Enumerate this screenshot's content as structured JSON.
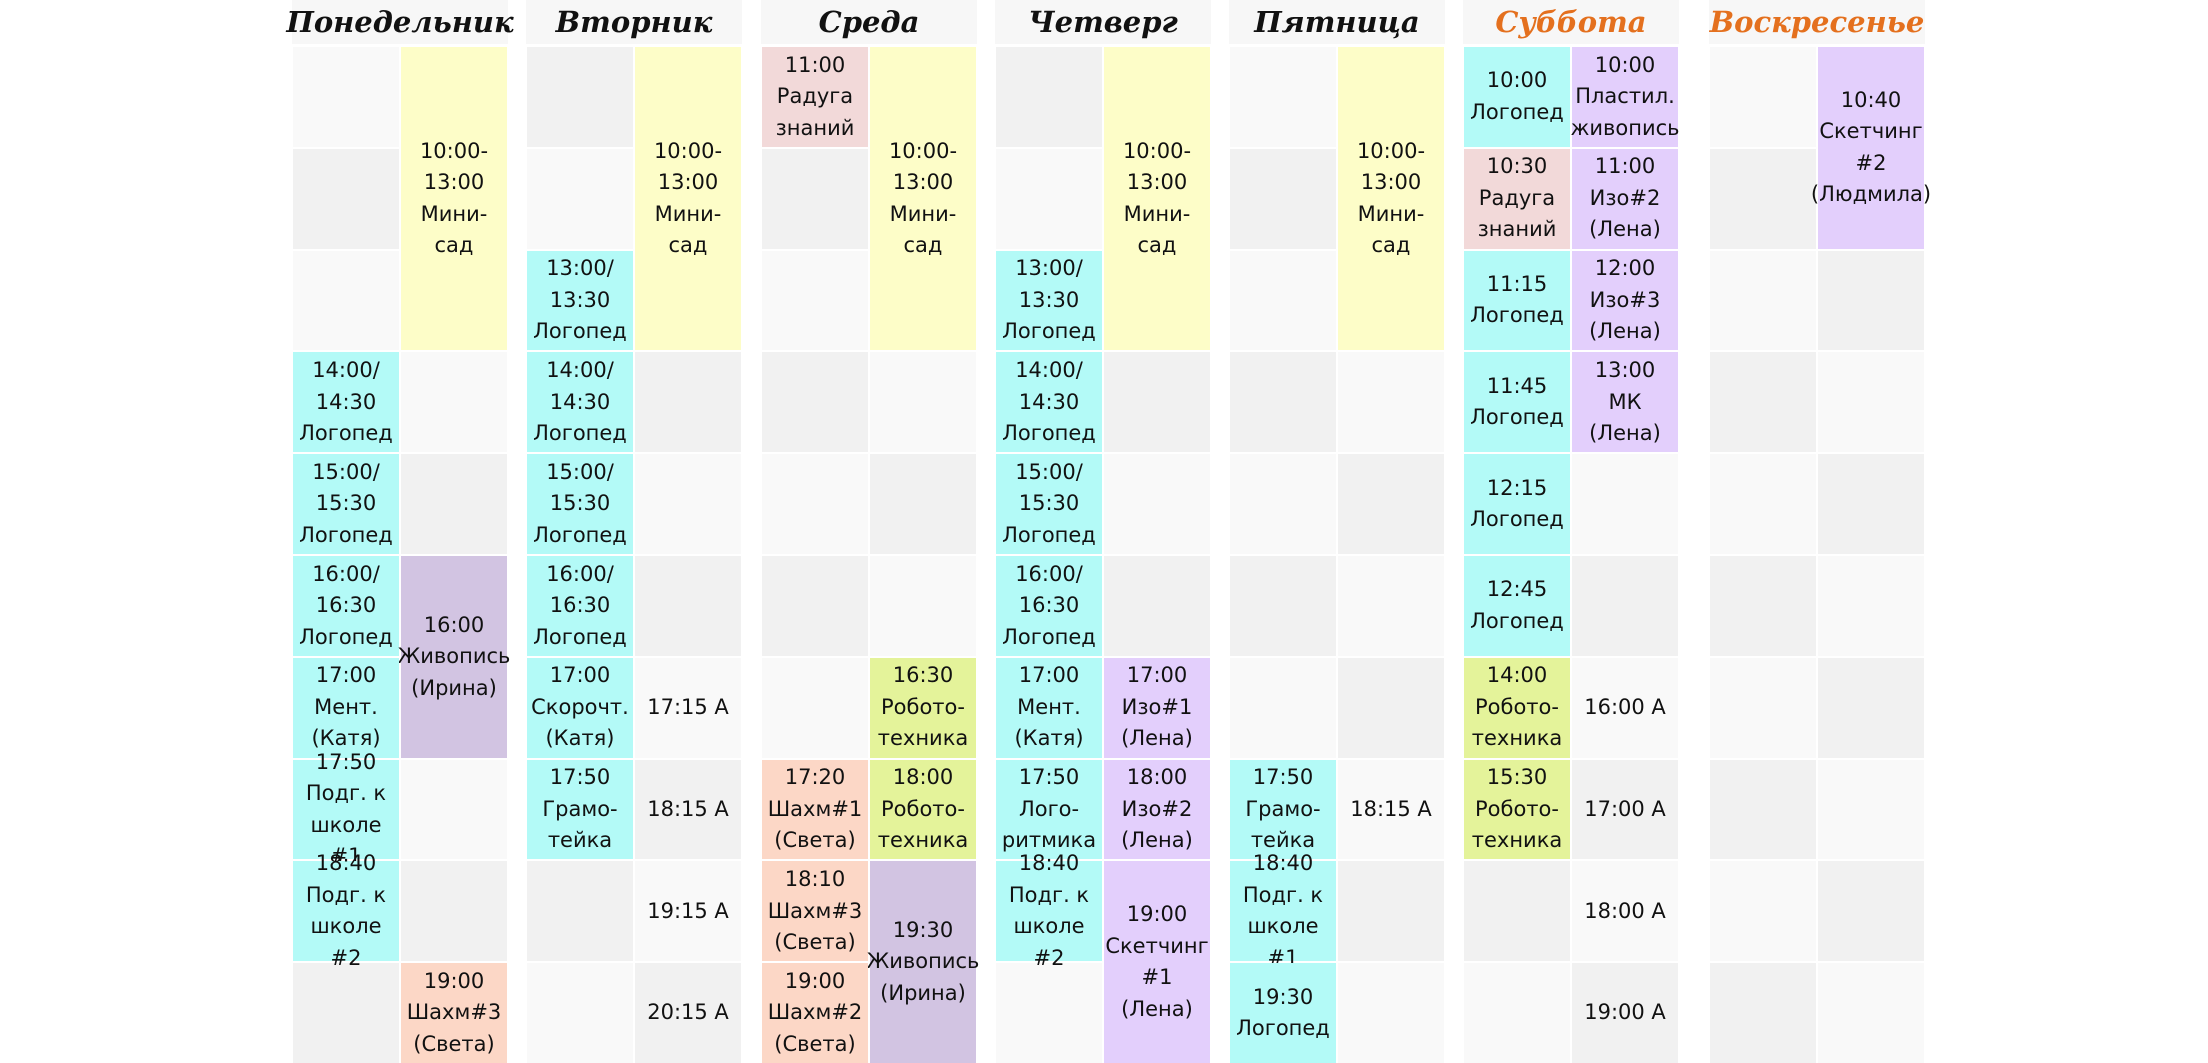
{
  "colors": {
    "weekday_text": "#111111",
    "weekend_text": "#e4701e",
    "header_bg": "#f7f7f7",
    "empty_light": "#f9f9f9",
    "empty_dark": "#f1f1f1",
    "cyan": "#b3faf7",
    "yellow": "#fdfdc8",
    "pink": "#f2d9d9",
    "salmon": "#fcd7c6",
    "purple": "#e3cffc",
    "mauve": "#d2c4e2",
    "lime": "#e4f39a"
  },
  "days": [
    {
      "name": "Понедельник",
      "weekend": false,
      "events": [
        {
          "col": 1,
          "start": 0,
          "span": 3,
          "text": "10:00-\n13:00\nМини-\nсад",
          "color": "yellow"
        },
        {
          "col": 0,
          "start": 3,
          "span": 1,
          "text": "14:00/\n14:30\nЛогопед",
          "color": "cyan"
        },
        {
          "col": 0,
          "start": 4,
          "span": 1,
          "text": "15:00/\n15:30\nЛогопед",
          "color": "cyan"
        },
        {
          "col": 0,
          "start": 5,
          "span": 1,
          "text": "16:00/\n16:30\nЛогопед",
          "color": "cyan"
        },
        {
          "col": 1,
          "start": 5,
          "span": 2,
          "text": "16:00\nЖивопись\n(Ирина)",
          "color": "mauve"
        },
        {
          "col": 0,
          "start": 6,
          "span": 1,
          "text": "17:00\nМент.\n(Катя)",
          "color": "cyan"
        },
        {
          "col": 0,
          "start": 7,
          "span": 1,
          "text": "17:50\nПодг. к\nшколе #1",
          "color": "cyan"
        },
        {
          "col": 0,
          "start": 8,
          "span": 1,
          "text": "18:40\nПодг. к\nшколе #2",
          "color": "cyan"
        },
        {
          "col": 1,
          "start": 9,
          "span": 1,
          "text": "19:00\nШахм#3\n(Света)",
          "color": "salmon"
        }
      ]
    },
    {
      "name": "Вторник",
      "weekend": false,
      "events": [
        {
          "col": 1,
          "start": 0,
          "span": 3,
          "text": "10:00-\n13:00\nМини-\nсад",
          "color": "yellow"
        },
        {
          "col": 0,
          "start": 2,
          "span": 1,
          "text": "13:00/\n13:30\nЛогопед",
          "color": "cyan"
        },
        {
          "col": 0,
          "start": 3,
          "span": 1,
          "text": "14:00/\n14:30\nЛогопед",
          "color": "cyan"
        },
        {
          "col": 0,
          "start": 4,
          "span": 1,
          "text": "15:00/\n15:30\nЛогопед",
          "color": "cyan"
        },
        {
          "col": 0,
          "start": 5,
          "span": 1,
          "text": "16:00/\n16:30\nЛогопед",
          "color": "cyan"
        },
        {
          "col": 0,
          "start": 6,
          "span": 1,
          "text": "17:00\nСкорочт.\n(Катя)",
          "color": "cyan"
        },
        {
          "col": 1,
          "start": 6,
          "span": 1,
          "text": "17:15 А",
          "color": ""
        },
        {
          "col": 0,
          "start": 7,
          "span": 1,
          "text": "17:50\nГрамо-\nтейка",
          "color": "cyan"
        },
        {
          "col": 1,
          "start": 7,
          "span": 1,
          "text": "18:15 А",
          "color": ""
        },
        {
          "col": 1,
          "start": 8,
          "span": 1,
          "text": "19:15 А",
          "color": ""
        },
        {
          "col": 1,
          "start": 9,
          "span": 1,
          "text": "20:15 А",
          "color": ""
        }
      ]
    },
    {
      "name": "Среда",
      "weekend": false,
      "events": [
        {
          "col": 0,
          "start": 0,
          "span": 1,
          "text": "11:00\nРадуга\nзнаний",
          "color": "pink"
        },
        {
          "col": 1,
          "start": 0,
          "span": 3,
          "text": "10:00-\n13:00\nМини-\nсад",
          "color": "yellow"
        },
        {
          "col": 1,
          "start": 6,
          "span": 1,
          "text": "16:30\nРобото-\nтехника",
          "color": "lime"
        },
        {
          "col": 0,
          "start": 7,
          "span": 1,
          "text": "17:20\nШахм#1\n(Света)",
          "color": "salmon"
        },
        {
          "col": 1,
          "start": 7,
          "span": 1,
          "text": "18:00\nРобото-\nтехника",
          "color": "lime"
        },
        {
          "col": 0,
          "start": 8,
          "span": 1,
          "text": "18:10\nШахм#3\n(Света)",
          "color": "salmon"
        },
        {
          "col": 1,
          "start": 8,
          "span": 2,
          "text": "19:30\nЖивопись\n(Ирина)",
          "color": "mauve"
        },
        {
          "col": 0,
          "start": 9,
          "span": 1,
          "text": "19:00\nШахм#2\n(Света)",
          "color": "salmon"
        }
      ]
    },
    {
      "name": "Четверг",
      "weekend": false,
      "events": [
        {
          "col": 1,
          "start": 0,
          "span": 3,
          "text": "10:00-\n13:00\nМини-\nсад",
          "color": "yellow"
        },
        {
          "col": 0,
          "start": 2,
          "span": 1,
          "text": "13:00/\n13:30\nЛогопед",
          "color": "cyan"
        },
        {
          "col": 0,
          "start": 3,
          "span": 1,
          "text": "14:00/\n14:30\nЛогопед",
          "color": "cyan"
        },
        {
          "col": 0,
          "start": 4,
          "span": 1,
          "text": "15:00/\n15:30\nЛогопед",
          "color": "cyan"
        },
        {
          "col": 0,
          "start": 5,
          "span": 1,
          "text": "16:00/\n16:30\nЛогопед",
          "color": "cyan"
        },
        {
          "col": 0,
          "start": 6,
          "span": 1,
          "text": "17:00\nМент.\n(Катя)",
          "color": "cyan"
        },
        {
          "col": 1,
          "start": 6,
          "span": 1,
          "text": "17:00\nИзо#1\n(Лена)",
          "color": "purple"
        },
        {
          "col": 0,
          "start": 7,
          "span": 1,
          "text": "17:50\nЛого-\nритмика",
          "color": "cyan"
        },
        {
          "col": 1,
          "start": 7,
          "span": 1,
          "text": "18:00\nИзо#2\n(Лена)",
          "color": "purple"
        },
        {
          "col": 0,
          "start": 8,
          "span": 1,
          "text": "18:40\nПодг. к\nшколе #2",
          "color": "cyan"
        },
        {
          "col": 1,
          "start": 8,
          "span": 2,
          "text": "19:00\nСкетчинг\n#1\n(Лена)",
          "color": "purple"
        }
      ]
    },
    {
      "name": "Пятница",
      "weekend": false,
      "events": [
        {
          "col": 1,
          "start": 0,
          "span": 3,
          "text": "10:00-\n13:00\nМини-\nсад",
          "color": "yellow"
        },
        {
          "col": 0,
          "start": 7,
          "span": 1,
          "text": "17:50\nГрамо-\nтейка",
          "color": "cyan"
        },
        {
          "col": 1,
          "start": 7,
          "span": 1,
          "text": "18:15 А",
          "color": ""
        },
        {
          "col": 0,
          "start": 8,
          "span": 1,
          "text": "18:40\nПодг. к\nшколе #1",
          "color": "cyan"
        },
        {
          "col": 0,
          "start": 9,
          "span": 1,
          "text": "19:30\nЛогопед",
          "color": "cyan"
        }
      ]
    },
    {
      "name": "Суббота",
      "weekend": true,
      "events": [
        {
          "col": 0,
          "start": 0,
          "span": 1,
          "text": "10:00\nЛогопед",
          "color": "cyan"
        },
        {
          "col": 1,
          "start": 0,
          "span": 1,
          "text": "10:00\nПластил.\nживопись",
          "color": "purple"
        },
        {
          "col": 0,
          "start": 1,
          "span": 1,
          "text": "10:30\nРадуга\nзнаний",
          "color": "pink"
        },
        {
          "col": 1,
          "start": 1,
          "span": 1,
          "text": "11:00\nИзо#2\n(Лена)",
          "color": "purple"
        },
        {
          "col": 0,
          "start": 2,
          "span": 1,
          "text": "11:15\nЛогопед",
          "color": "cyan"
        },
        {
          "col": 1,
          "start": 2,
          "span": 1,
          "text": "12:00\nИзо#3\n(Лена)",
          "color": "purple"
        },
        {
          "col": 0,
          "start": 3,
          "span": 1,
          "text": "11:45\nЛогопед",
          "color": "cyan"
        },
        {
          "col": 1,
          "start": 3,
          "span": 1,
          "text": "13:00\nМК (Лена)",
          "color": "purple"
        },
        {
          "col": 0,
          "start": 4,
          "span": 1,
          "text": "12:15\nЛогопед",
          "color": "cyan"
        },
        {
          "col": 0,
          "start": 5,
          "span": 1,
          "text": "12:45\nЛогопед",
          "color": "cyan"
        },
        {
          "col": 0,
          "start": 6,
          "span": 1,
          "text": "14:00\nРобото-\nтехника",
          "color": "lime"
        },
        {
          "col": 1,
          "start": 6,
          "span": 1,
          "text": "16:00 А",
          "color": ""
        },
        {
          "col": 0,
          "start": 7,
          "span": 1,
          "text": "15:30\nРобото-\nтехника",
          "color": "lime"
        },
        {
          "col": 1,
          "start": 7,
          "span": 1,
          "text": "17:00 А",
          "color": ""
        },
        {
          "col": 1,
          "start": 8,
          "span": 1,
          "text": "18:00 А",
          "color": ""
        },
        {
          "col": 1,
          "start": 9,
          "span": 1,
          "text": "19:00 А",
          "color": ""
        }
      ]
    },
    {
      "name": "Воскресенье",
      "weekend": true,
      "events": [
        {
          "col": 1,
          "start": 0,
          "span": 2,
          "text": "10:40\nСкетчинг\n#2\n(Людмила)",
          "color": "purple"
        }
      ]
    }
  ]
}
